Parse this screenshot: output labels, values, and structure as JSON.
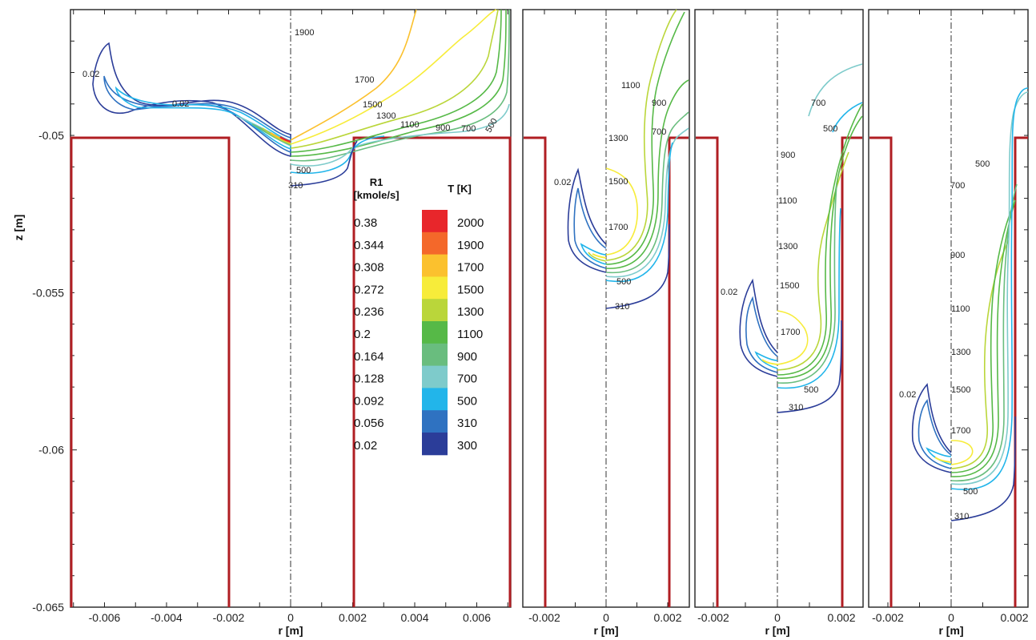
{
  "chart_data": {
    "type": "contour",
    "panels": [
      {
        "name": "panel-1",
        "r_ticks": [
          "-0.006",
          "-0.004",
          "-0.002",
          "0",
          "0.002",
          "0.004",
          "0.006"
        ],
        "iso_labels": [
          "0.02",
          "0.02",
          "1900",
          "1700",
          "1500",
          "1300",
          "1100",
          "900",
          "700",
          "500",
          "500",
          "310"
        ]
      },
      {
        "name": "panel-2",
        "r_ticks": [
          "-0.002",
          "0",
          "0.002"
        ],
        "iso_labels": [
          "0.02",
          "1100",
          "900",
          "700",
          "1300",
          "1500",
          "1700",
          "500",
          "310"
        ]
      },
      {
        "name": "panel-3",
        "r_ticks": [
          "-0.002",
          "0",
          "0.002"
        ],
        "iso_labels": [
          "0.02",
          "700",
          "500",
          "900",
          "1100",
          "1300",
          "1500",
          "1700",
          "500",
          "310"
        ]
      },
      {
        "name": "panel-4",
        "r_ticks": [
          "-0.002",
          "0",
          "0.002"
        ],
        "iso_labels": [
          "0.02",
          "500",
          "700",
          "900",
          "1100",
          "1300",
          "1500",
          "1700",
          "500",
          "310"
        ]
      }
    ],
    "z_ticks": [
      "-0.05",
      "-0.055",
      "-0.06",
      "-0.065"
    ],
    "z_range": [
      -0.065,
      -0.046
    ],
    "xlabel": "r [m]",
    "ylabel": "z [m]",
    "legend": {
      "r1_title": "R1",
      "r1_units": "[kmole/s]",
      "t_title": "T [K]",
      "r1_values": [
        "0.38",
        "0.344",
        "0.308",
        "0.272",
        "0.236",
        "0.2",
        "0.164",
        "0.128",
        "0.092",
        "0.056",
        "0.02"
      ],
      "t_values": [
        "2000",
        "1900",
        "1700",
        "1500",
        "1300",
        "1100",
        "900",
        "700",
        "500",
        "310",
        "300"
      ],
      "colors": [
        "#e8262b",
        "#f4682a",
        "#fbc12e",
        "#f7ec3a",
        "#bad63a",
        "#56b947",
        "#69bd7e",
        "#7ecbcb",
        "#22b5ea",
        "#2f72c1",
        "#2b3d99"
      ]
    }
  }
}
